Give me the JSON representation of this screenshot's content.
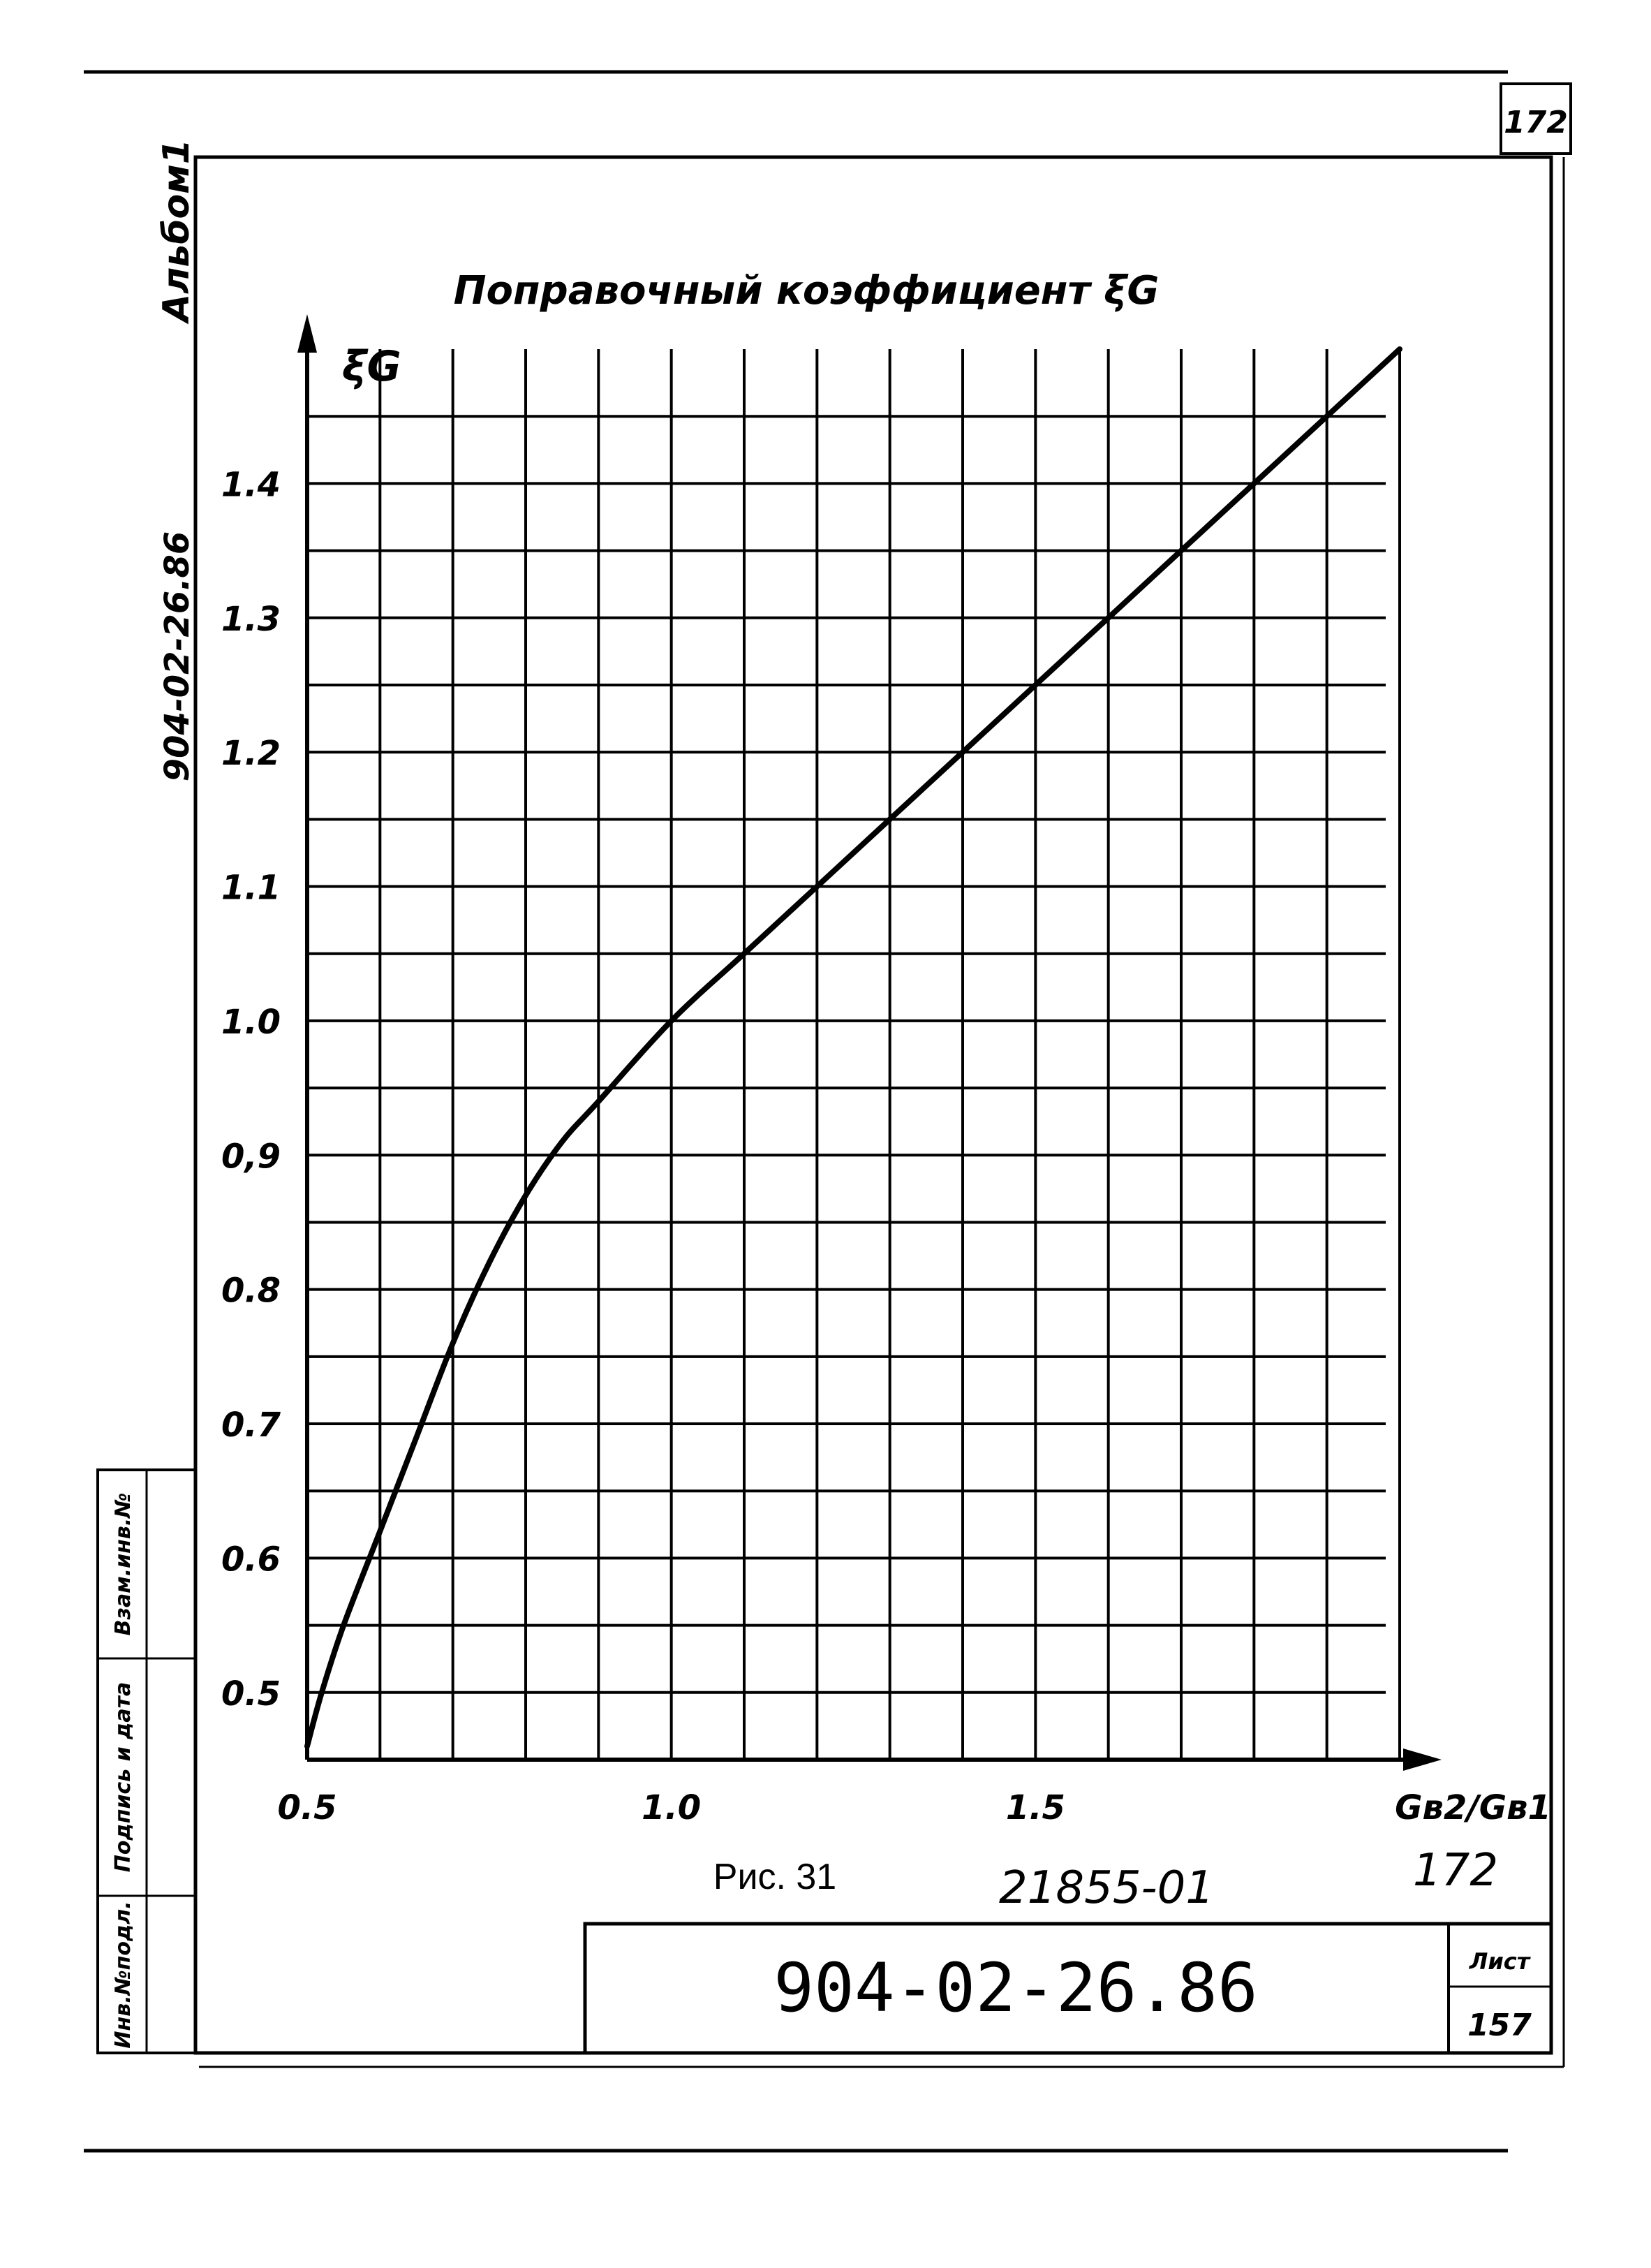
{
  "page": {
    "page_number_top": "172",
    "album_label": "Альбом1",
    "side_code": "904-02-26.86",
    "stamp_labels": [
      "Инв.№подл.",
      "Подпись и дата",
      "Взам.инв.№"
    ],
    "figure_caption": "Рис. 31",
    "handwritten_number": "21855-01",
    "handwritten_page": "172",
    "title_block_code": "904-02-26.86",
    "sheet_label": "Лист",
    "sheet_number": "157"
  },
  "chart_data": {
    "type": "line",
    "title": "Поправочный коэффициент ξG",
    "ylabel": "ξG",
    "xlabel": "Gв2/Gв1",
    "xlim": [
      0.5,
      2.0
    ],
    "ylim": [
      0.45,
      1.5
    ],
    "x_ticks": [
      0.5,
      1.0,
      1.5
    ],
    "x_tick_labels": [
      "0.5",
      "1.0",
      "1.5"
    ],
    "y_ticks": [
      0.5,
      0.6,
      0.7,
      0.8,
      0.9,
      1.0,
      1.1,
      1.2,
      1.3,
      1.4
    ],
    "y_tick_labels": [
      "0.5",
      "0.6",
      "0.7",
      "0.8",
      "0,9",
      "1.0",
      "1.1",
      "1.2",
      "1.3",
      "1.4"
    ],
    "grid": true,
    "x_grid_step": 0.1,
    "y_grid_step": 0.05,
    "series": [
      {
        "x": [
          0.5,
          0.52,
          0.55,
          0.6,
          0.65,
          0.7,
          0.75,
          0.8,
          0.85,
          0.9,
          1.0,
          1.1,
          1.2,
          1.3,
          1.4,
          1.5,
          1.6,
          1.7,
          1.8,
          1.9,
          2.0
        ],
        "y": [
          0.46,
          0.5,
          0.55,
          0.62,
          0.69,
          0.76,
          0.82,
          0.87,
          0.91,
          0.94,
          1.0,
          1.05,
          1.1,
          1.15,
          1.2,
          1.25,
          1.3,
          1.35,
          1.4,
          1.45,
          1.5
        ]
      }
    ],
    "colors": {
      "ink": "#000000",
      "paper": "#ffffff"
    }
  }
}
